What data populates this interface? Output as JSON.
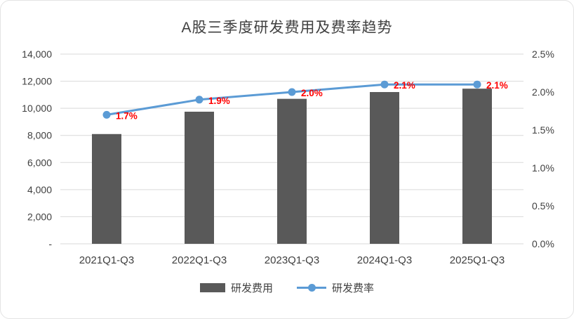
{
  "chart_data": {
    "type": "bar",
    "title": "A股三季度研发费用及费率趋势",
    "categories": [
      "2021Q1-Q3",
      "2022Q1-Q3",
      "2023Q1-Q3",
      "2024Q1-Q3",
      "2025Q1-Q3"
    ],
    "series": [
      {
        "name": "研发费用",
        "type": "bar",
        "axis": "left",
        "values": [
          8100,
          9750,
          10700,
          11200,
          11450
        ],
        "color": "#595959"
      },
      {
        "name": "研发费率",
        "type": "line",
        "axis": "right",
        "values": [
          1.7,
          1.9,
          2.0,
          2.1,
          2.1
        ],
        "labels": [
          "1.7%",
          "1.9%",
          "2.0%",
          "2.1%",
          "2.1%"
        ],
        "color": "#5B9BD5",
        "label_color": "#FF0000"
      }
    ],
    "left_axis": {
      "min": 0,
      "max": 14000,
      "step": 2000,
      "zero_label": "-"
    },
    "right_axis": {
      "min": 0,
      "max": 2.5,
      "step": 0.5,
      "suffix": "%"
    },
    "grid": true,
    "grid_color": "#D9D9D9",
    "axis_text_color": "#404040",
    "legend_position": "bottom"
  }
}
